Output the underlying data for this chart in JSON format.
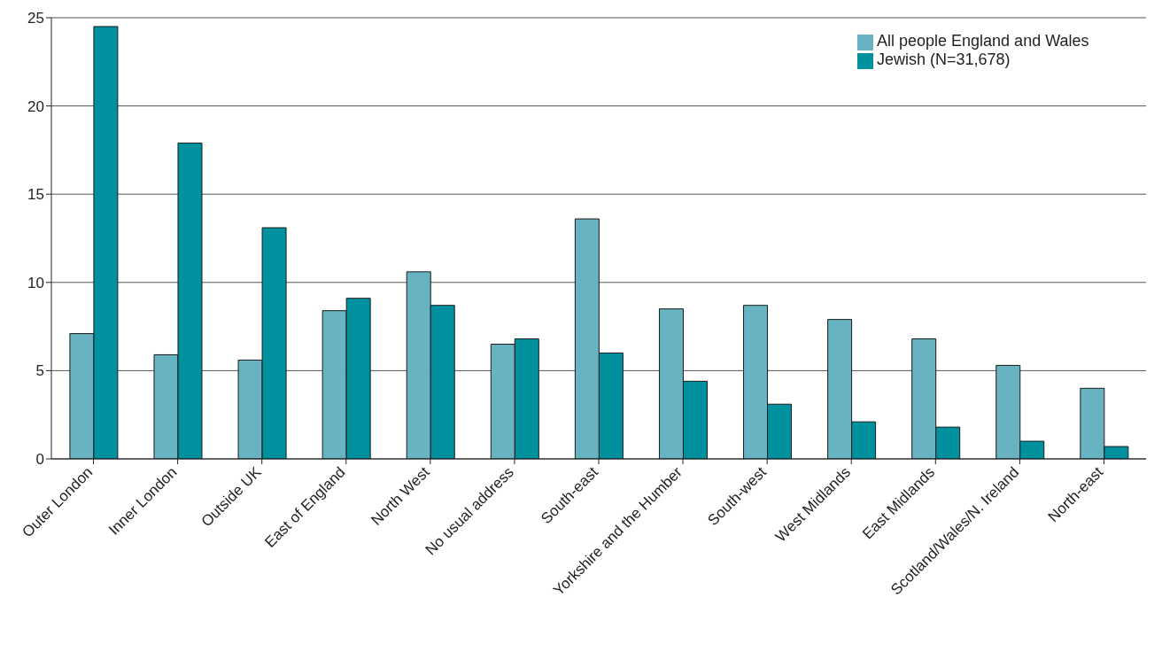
{
  "chart_data": {
    "type": "bar",
    "categories": [
      "Outer London",
      "Inner London",
      "Outside UK",
      "East of England",
      "North West",
      "No usual address",
      "South-east",
      "Yorkshire and the Humber",
      "South-west",
      "West Midlands",
      "East Midlands",
      "Scotland/Wales/N. Ireland",
      "North-east"
    ],
    "series": [
      {
        "name": "All people England and Wales",
        "color": "#67b3c2",
        "values": [
          7.1,
          5.9,
          5.6,
          8.4,
          10.6,
          6.5,
          13.6,
          8.5,
          8.7,
          7.9,
          6.8,
          5.3,
          4.0
        ]
      },
      {
        "name": "Jewish (N=31,678)",
        "color": "#00919f",
        "values": [
          24.5,
          17.9,
          13.1,
          9.1,
          8.7,
          6.8,
          6.0,
          4.4,
          3.1,
          2.1,
          1.8,
          1.0,
          0.7
        ]
      }
    ],
    "ylim": [
      0,
      25
    ],
    "yticks": [
      0,
      5,
      10,
      15,
      20,
      25
    ],
    "grid": "y",
    "legend": "top right"
  }
}
